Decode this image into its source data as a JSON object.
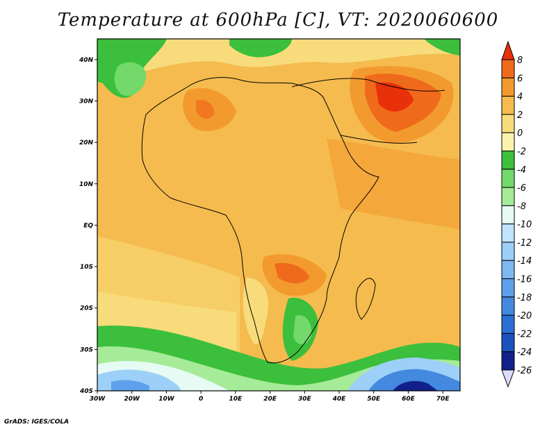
{
  "title": "Temperature at 600hPa [C], VT: 2020060600",
  "credit": "GrADS: IGES/COLA",
  "map": {
    "lon_range": [
      -30,
      75
    ],
    "lat_range": [
      -40,
      45
    ],
    "lon_ticks": [
      {
        "value": -30,
        "label": "30W"
      },
      {
        "value": -20,
        "label": "20W"
      },
      {
        "value": -10,
        "label": "10W"
      },
      {
        "value": 0,
        "label": "0"
      },
      {
        "value": 10,
        "label": "10E"
      },
      {
        "value": 20,
        "label": "20E"
      },
      {
        "value": 30,
        "label": "30E"
      },
      {
        "value": 40,
        "label": "40E"
      },
      {
        "value": 50,
        "label": "50E"
      },
      {
        "value": 60,
        "label": "60E"
      },
      {
        "value": 70,
        "label": "70E"
      }
    ],
    "lat_ticks": [
      {
        "value": 40,
        "label": "40N"
      },
      {
        "value": 30,
        "label": "30N"
      },
      {
        "value": 20,
        "label": "20N"
      },
      {
        "value": 10,
        "label": "10N"
      },
      {
        "value": 0,
        "label": "EQ"
      },
      {
        "value": -10,
        "label": "10S"
      },
      {
        "value": -20,
        "label": "20S"
      },
      {
        "value": -30,
        "label": "30S"
      },
      {
        "value": -40,
        "label": "40S"
      }
    ]
  },
  "colorbar": {
    "levels": [
      8,
      6,
      4,
      2,
      0,
      -2,
      -4,
      -6,
      -8,
      -10,
      -12,
      -14,
      -16,
      -18,
      -20,
      -22,
      -24,
      -26
    ],
    "colors": [
      "#e8300a",
      "#f06a1c",
      "#f39a2e",
      "#f5bb4e",
      "#f8dc7c",
      "#fbf2ab",
      "#3cbf3c",
      "#72d96a",
      "#a6eb98",
      "#e6fbf3",
      "#bfe4fb",
      "#9dd0f8",
      "#7db8f1",
      "#5ea0ea",
      "#4389e0",
      "#2b6fd3",
      "#1a53c0",
      "#11208a",
      "#dcdcff"
    ]
  }
}
